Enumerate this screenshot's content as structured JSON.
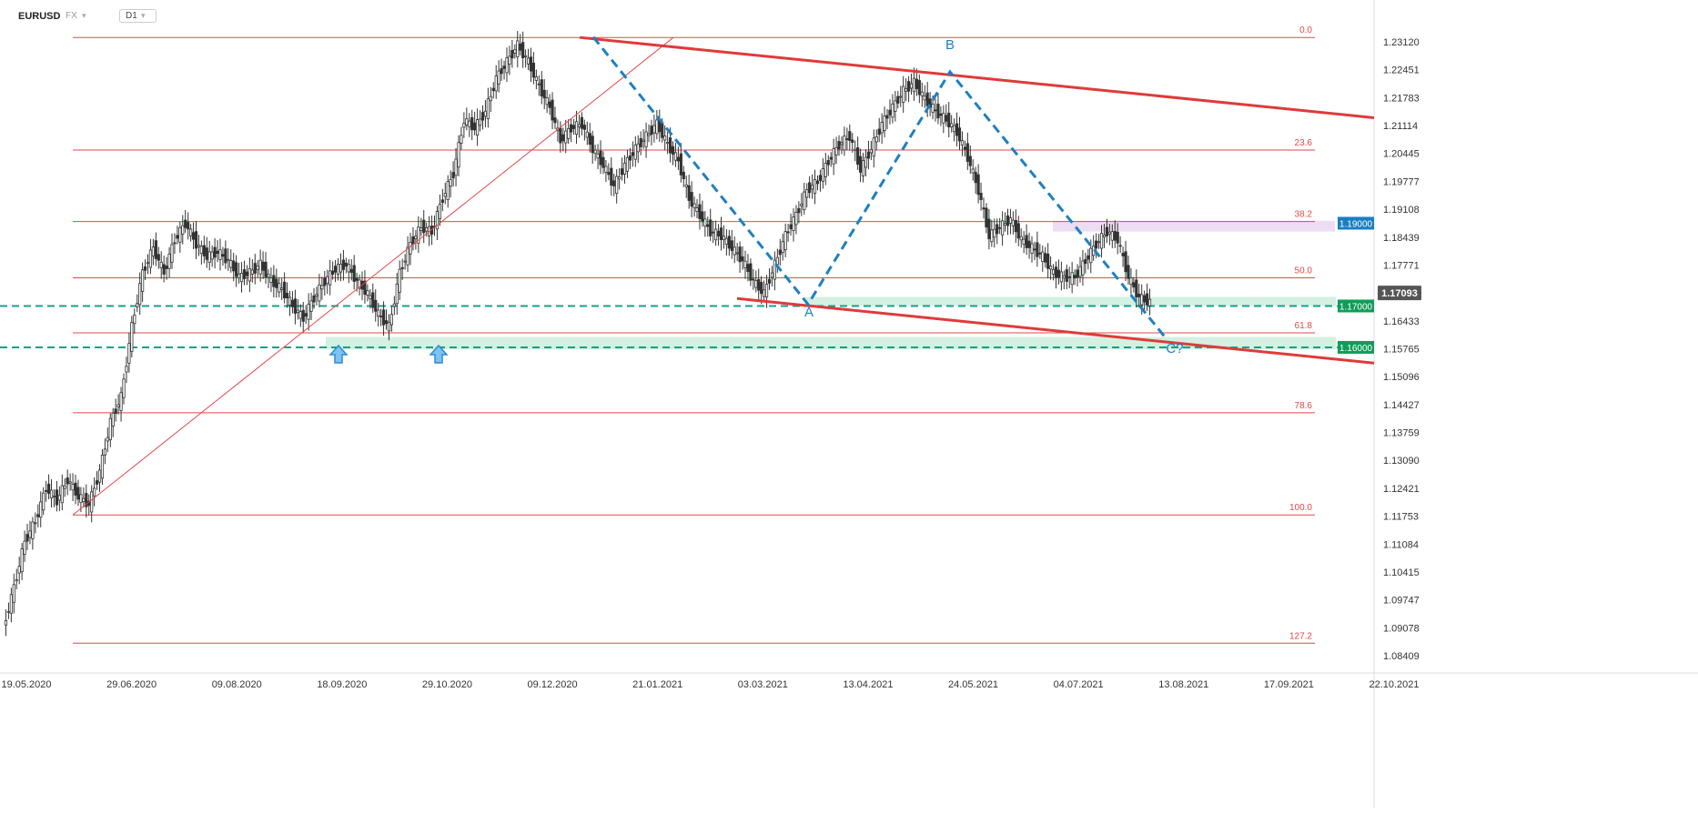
{
  "header": {
    "symbol": "EURUSD",
    "exchange": "FX",
    "timeframe": "D1"
  },
  "chart_data": {
    "type": "candlestick",
    "instrument": "EURUSD",
    "timeframe": "D1",
    "x_axis": {
      "tick_labels": [
        "19.05.2020",
        "29.06.2020",
        "09.08.2020",
        "18.09.2020",
        "29.10.2020",
        "09.12.2020",
        "21.01.2021",
        "03.03.2021",
        "13.04.2021",
        "24.05.2021",
        "04.07.2021",
        "13.08.2021",
        "17.09.2021",
        "22.10.2021"
      ]
    },
    "y_axis": {
      "tick_labels": [
        "1.23120",
        "1.22451",
        "1.21783",
        "1.21114",
        "1.20445",
        "1.19777",
        "1.19108",
        "1.18439",
        "1.17771",
        "1.17093",
        "1.16433",
        "1.15765",
        "1.15096",
        "1.14427",
        "1.13759",
        "1.13090",
        "1.12421",
        "1.11753",
        "1.11084",
        "1.10415",
        "1.09747",
        "1.09078",
        "1.08409"
      ],
      "range": [
        1.0835,
        1.2378
      ]
    },
    "current_price": "1.17093",
    "price_badges": [
      {
        "label": "1.19000",
        "value": 1.19,
        "color": "#1a7fc1"
      },
      {
        "label": "1.17000",
        "value": 1.17,
        "color": "#0f9d58"
      },
      {
        "label": "1.16000",
        "value": 1.16,
        "color": "#0f9d58"
      }
    ],
    "fibonacci": {
      "levels": [
        {
          "label": "0.0",
          "price": 1.2349
        },
        {
          "label": "23.6",
          "price": 1.2077
        },
        {
          "label": "38.2",
          "price": 1.1904
        },
        {
          "label": "50.0",
          "price": 1.1768
        },
        {
          "label": "61.8",
          "price": 1.1635
        },
        {
          "label": "78.6",
          "price": 1.1442
        },
        {
          "label": "100.0",
          "price": 1.1195
        },
        {
          "label": "127.2",
          "price": 1.0885
        }
      ]
    },
    "wave_labels": [
      {
        "label": "A",
        "price": 1.1704
      },
      {
        "label": "B",
        "price": 1.2266
      },
      {
        "label": "C?",
        "price": 1.16
      }
    ],
    "close_series": [
      1.092,
      1.102,
      1.113,
      1.118,
      1.126,
      1.123,
      1.128,
      1.124,
      1.122,
      1.13,
      1.142,
      1.148,
      1.165,
      1.178,
      1.184,
      1.178,
      1.186,
      1.19,
      1.185,
      1.182,
      1.183,
      1.181,
      1.177,
      1.178,
      1.18,
      1.176,
      1.174,
      1.17,
      1.167,
      1.172,
      1.176,
      1.179,
      1.18,
      1.176,
      1.173,
      1.168,
      1.165,
      1.178,
      1.185,
      1.189,
      1.188,
      1.196,
      1.202,
      1.215,
      1.213,
      1.217,
      1.225,
      1.229,
      1.233,
      1.229,
      1.223,
      1.218,
      1.21,
      1.213,
      1.214,
      1.208,
      1.204,
      1.199,
      1.204,
      1.208,
      1.211,
      1.214,
      1.209,
      1.205,
      1.196,
      1.192,
      1.188,
      1.187,
      1.184,
      1.181,
      1.176,
      1.173,
      1.18,
      1.187,
      1.192,
      1.198,
      1.2,
      1.205,
      1.209,
      1.211,
      1.203,
      1.208,
      1.214,
      1.218,
      1.222,
      1.224,
      1.22,
      1.217,
      1.215,
      1.212,
      1.206,
      1.198,
      1.187,
      1.189,
      1.191,
      1.186,
      1.184,
      1.182,
      1.178,
      1.177,
      1.177,
      1.181,
      1.185,
      1.188,
      1.186,
      1.177,
      1.172,
      1.1709
    ]
  }
}
